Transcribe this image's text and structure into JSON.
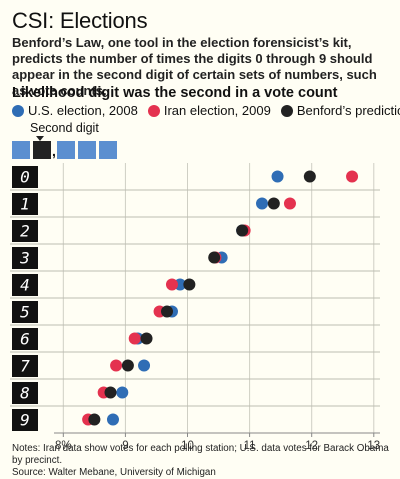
{
  "header": {
    "title": "CSI: Elections",
    "description": "Benford’s Law, one tool in the election forensicist’s kit, predicts the number of times the digits 0 through 9 should appear in the second digit of certain sets of numbers, such as vote counts.",
    "subtitle": "Likelihood digit was the second in a vote count"
  },
  "legend": [
    {
      "label": "U.S. election, 2008",
      "color": "#2f6db5"
    },
    {
      "label": "Iran election, 2009",
      "color": "#e4324f"
    },
    {
      "label": "Benford’s prediction",
      "color": "#222222"
    }
  ],
  "second_digit": {
    "label": "Second digit",
    "box_color": "#5b8fd0",
    "selected_color": "#222222",
    "comma": ","
  },
  "chart_data": {
    "type": "scatter",
    "categories": [
      "0",
      "1",
      "2",
      "3",
      "4",
      "5",
      "6",
      "7",
      "8",
      "9"
    ],
    "series": [
      {
        "name": "U.S. election, 2008",
        "color": "#2f6db5",
        "values": [
          11.45,
          11.2,
          10.88,
          10.55,
          9.88,
          9.75,
          9.2,
          9.3,
          8.95,
          8.8
        ]
      },
      {
        "name": "Iran election, 2009",
        "color": "#e4324f",
        "values": [
          12.65,
          11.65,
          10.92,
          10.45,
          9.75,
          9.55,
          9.15,
          8.85,
          8.65,
          8.4
        ]
      },
      {
        "name": "Benford’s prediction",
        "color": "#222222",
        "values": [
          11.97,
          11.39,
          10.88,
          10.43,
          10.03,
          9.67,
          9.34,
          9.04,
          8.76,
          8.5
        ]
      }
    ],
    "xlim": [
      7.85,
      13.1
    ],
    "xticks": [
      "8%",
      "9",
      "10",
      "11",
      "12",
      "13"
    ],
    "xtick_values": [
      8,
      9,
      10,
      11,
      12,
      13
    ],
    "grid": true
  },
  "notes": {
    "line1": "Notes: Iran data show votes for each polling station; U.S. data votes for Barack Obama by precinct.",
    "line2": "Source: Walter Mebane, University of Michigan"
  }
}
